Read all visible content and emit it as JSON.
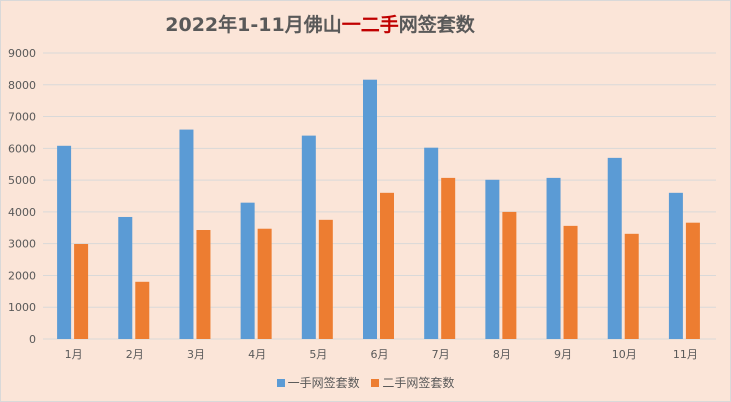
{
  "chart_data": {
    "type": "bar",
    "title_parts": [
      "2022年1-11月佛山",
      "一二手",
      "网签套数"
    ],
    "categories": [
      "1月",
      "2月",
      "3月",
      "4月",
      "5月",
      "6月",
      "7月",
      "8月",
      "9月",
      "10月",
      "11月"
    ],
    "series": [
      {
        "name": "一手网签套数",
        "color": "#5b9bd5",
        "values": [
          6080,
          3840,
          6590,
          4290,
          6400,
          8160,
          6020,
          5010,
          5070,
          5700,
          4600
        ]
      },
      {
        "name": "二手网签套数",
        "color": "#ed7d31",
        "values": [
          2990,
          1800,
          3430,
          3470,
          3750,
          4600,
          5070,
          4000,
          3560,
          3310,
          3660
        ]
      }
    ],
    "ylim": [
      0,
      9000
    ],
    "yticks": [
      "0",
      "1000",
      "2000",
      "3000",
      "4000",
      "5000",
      "6000",
      "7000",
      "8000",
      "9000"
    ],
    "grid": true,
    "legend": "bottom"
  }
}
